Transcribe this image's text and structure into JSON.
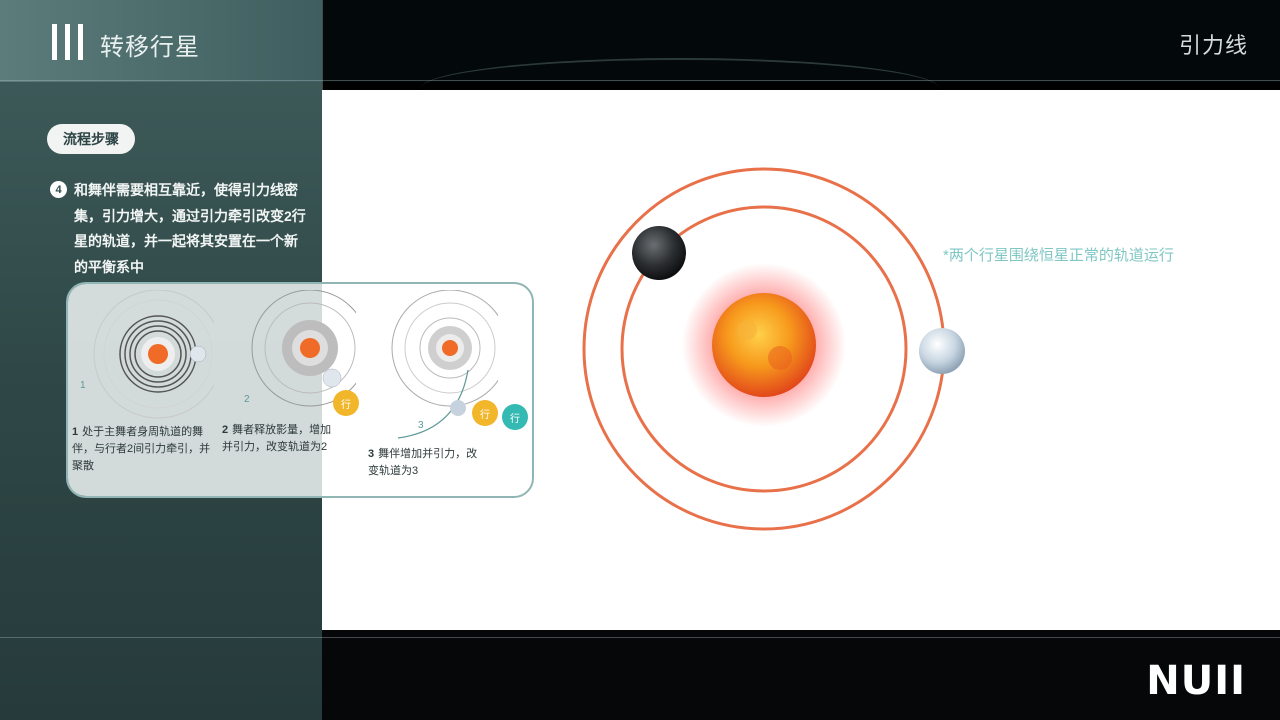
{
  "header": {
    "title": "转移行星",
    "right_title": "引力线"
  },
  "side": {
    "pill_label": "流程步骤",
    "step_number": "4",
    "step_text": "和舞伴需要相互靠近，使得引力线密集，引力增大，通过引力牵引改变2行星的轨道，并一起将其安置在一个新的平衡系中"
  },
  "steps": [
    {
      "number": "1",
      "text": "处于主舞者身周轨道的舞伴，与行者2间引力牵引，并聚散"
    },
    {
      "number": "2",
      "text": "舞者释放影量，增加并引力，改变轨道为2"
    },
    {
      "number": "3",
      "text": "舞伴增加并引力，改变轨道为3"
    }
  ],
  "mini_labels": [
    "1",
    "2",
    "3"
  ],
  "badges": [
    "行",
    "行",
    "行"
  ],
  "note": "*两个行星围绕恒星正常的轨道运行",
  "logo": "NUII",
  "colors": {
    "orbit": "#e8714a",
    "accent_teal": "#7fc7c4",
    "badge_yellow": "#f2b62a",
    "badge_teal": "#34b9b3"
  }
}
